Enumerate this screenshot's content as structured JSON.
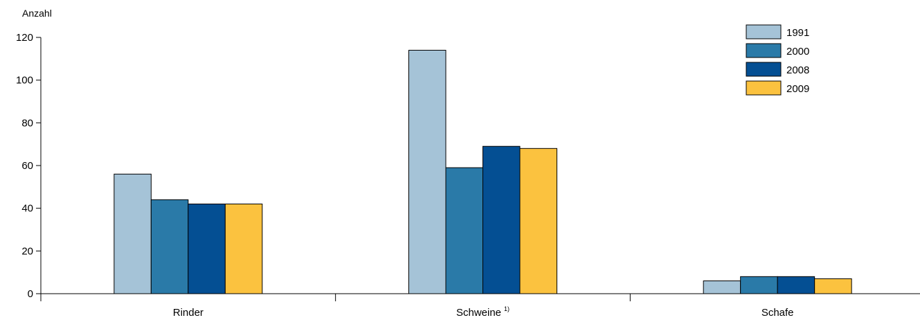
{
  "chart_data": {
    "type": "bar",
    "ylabel": "Anzahl",
    "ylim": [
      0,
      120
    ],
    "yticks": [
      0,
      20,
      40,
      60,
      80,
      100,
      120
    ],
    "categories": [
      {
        "label": "Rinder",
        "footnote": ""
      },
      {
        "label": "Schweine",
        "footnote": "1)"
      },
      {
        "label": "Schafe",
        "footnote": ""
      }
    ],
    "series": [
      {
        "name": "1991",
        "color": "#a5c3d7",
        "values": [
          56,
          114,
          6
        ]
      },
      {
        "name": "2000",
        "color": "#2a7aa8",
        "values": [
          44,
          59,
          8
        ]
      },
      {
        "name": "2008",
        "color": "#044f93",
        "values": [
          42,
          69,
          8
        ]
      },
      {
        "name": "2009",
        "color": "#fbc23f",
        "values": [
          42,
          68,
          7
        ]
      }
    ],
    "legend_position": "top-right",
    "grid": false
  }
}
